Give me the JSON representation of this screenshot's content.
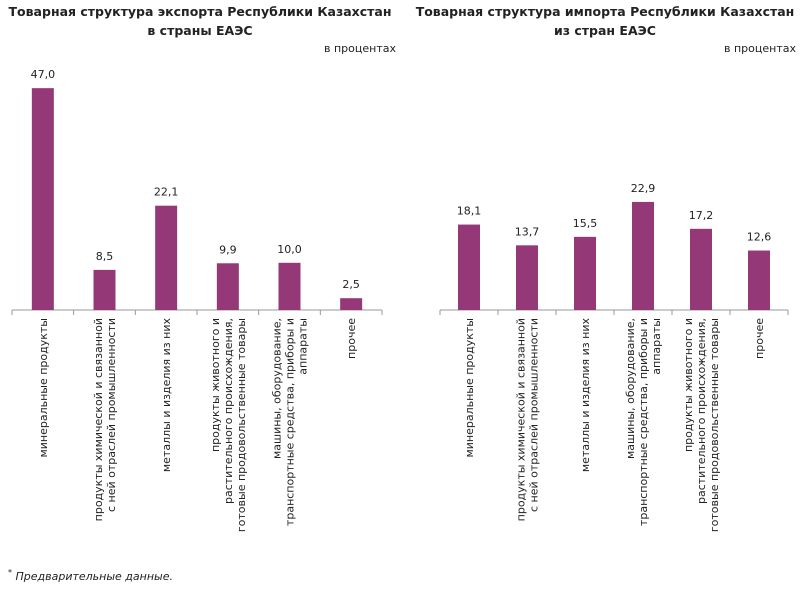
{
  "chart_data": [
    {
      "type": "bar",
      "title": [
        "Товарная структура экспорта Республики Казахстан",
        "в страны ЕАЭС"
      ],
      "unit_note": "в процентах",
      "categories": [
        "минеральные продукты",
        "продукты химической и связанной с ней отраслей промышленности",
        "металлы и изделия из них",
        "продукты животного и растительного происхождения, готовые продовольственные товары",
        "машины, оборудование, транспортные средства, приборы и аппараты",
        "прочее"
      ],
      "values": [
        47.0,
        8.5,
        22.1,
        9.9,
        10.0,
        2.5
      ],
      "value_labels": [
        "47,0",
        "8,5",
        "22,1",
        "9,9",
        "10,0",
        "2,5"
      ],
      "color": "#953877"
    },
    {
      "type": "bar",
      "title": [
        "Товарная структура импорта Республики Казахстан",
        "из стран ЕАЭС"
      ],
      "unit_note": "в процентах",
      "categories": [
        "минеральные продукты",
        "продукты химической и связанной с ней отраслей промышленности",
        "металлы и изделия из них",
        "машины, оборудование, транспортные средства, приборы и аппараты",
        "продукты животного и растительного происхождения, готовые продовольственные товары",
        "прочее"
      ],
      "values": [
        18.1,
        13.7,
        15.5,
        22.9,
        17.2,
        12.6
      ],
      "value_labels": [
        "18,1",
        "13,7",
        "15,5",
        "22,9",
        "17,2",
        "12,6"
      ],
      "color": "#953877"
    }
  ],
  "footnote": {
    "mark": "*",
    "text": " Предварительные данные."
  }
}
